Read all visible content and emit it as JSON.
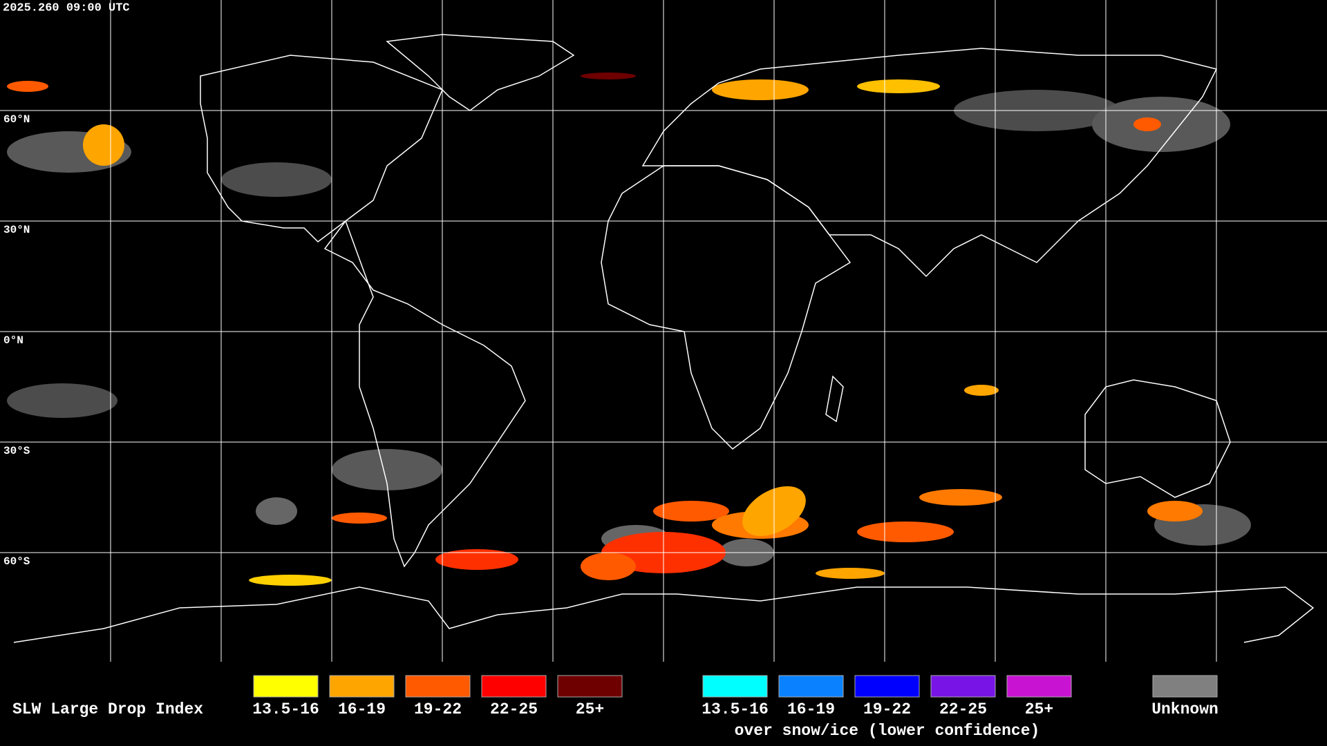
{
  "header": {
    "timestamp": "2025.260 09:00 UTC"
  },
  "map": {
    "latitude_labels": [
      "60°N",
      "30°N",
      "0°N",
      "30°S",
      "60°S"
    ]
  },
  "legend": {
    "title": "SLW Large Drop Index",
    "groups": [
      {
        "items": [
          {
            "label": "13.5-16",
            "color": "#ffff00"
          },
          {
            "label": "16-19",
            "color": "#ffa500"
          },
          {
            "label": "19-22",
            "color": "#ff5a00"
          },
          {
            "label": "22-25",
            "color": "#ff0000"
          },
          {
            "label": "25+",
            "color": "#6e0000"
          }
        ]
      },
      {
        "items": [
          {
            "label": "13.5-16",
            "color": "#00ffff"
          },
          {
            "label": "16-19",
            "color": "#0a82ff"
          },
          {
            "label": "19-22",
            "color": "#0000ff"
          },
          {
            "label": "22-25",
            "color": "#7814e6"
          },
          {
            "label": "25+",
            "color": "#c814d2"
          }
        ],
        "caption": "over snow/ice (lower confidence)"
      }
    ],
    "unknown": {
      "label": "Unknown",
      "color": "#808080"
    }
  }
}
